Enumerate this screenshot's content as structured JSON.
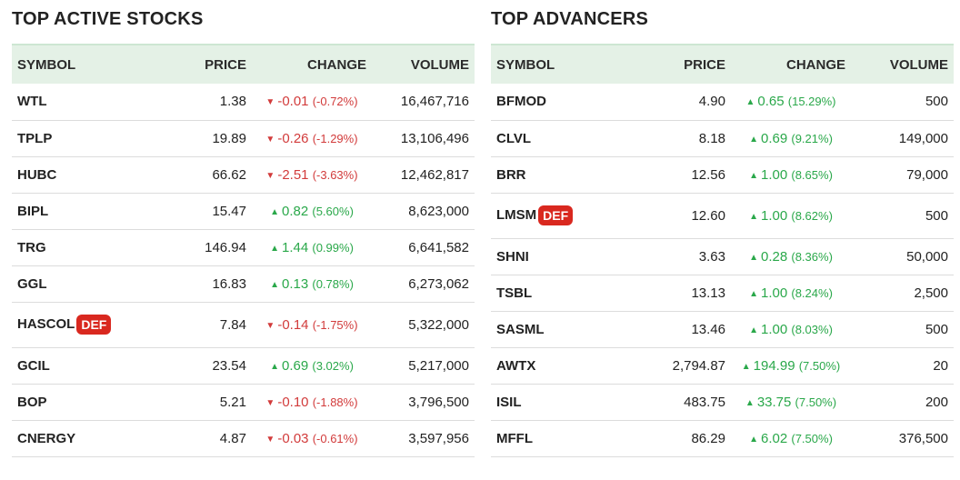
{
  "colors": {
    "up": "#2aa84a",
    "down": "#d23b3b",
    "header_bg": "#e4f1e6",
    "badge": "#d9281f"
  },
  "icons": {
    "up": "triangle-up-icon",
    "down": "triangle-down-icon"
  },
  "active": {
    "title": "TOP ACTIVE STOCKS",
    "headers": {
      "symbol": "SYMBOL",
      "price": "PRICE",
      "change": "CHANGE",
      "volume": "VOLUME"
    },
    "rows": [
      {
        "symbol": "WTL",
        "def": "",
        "price": "1.38",
        "dir": "down",
        "change": "-0.01",
        "pct": "(-0.72%)",
        "volume": "16,467,716"
      },
      {
        "symbol": "TPLP",
        "def": "",
        "price": "19.89",
        "dir": "down",
        "change": "-0.26",
        "pct": "(-1.29%)",
        "volume": "13,106,496"
      },
      {
        "symbol": "HUBC",
        "def": "",
        "price": "66.62",
        "dir": "down",
        "change": "-2.51",
        "pct": "(-3.63%)",
        "volume": "12,462,817"
      },
      {
        "symbol": "BIPL",
        "def": "",
        "price": "15.47",
        "dir": "up",
        "change": "0.82",
        "pct": "(5.60%)",
        "volume": "8,623,000"
      },
      {
        "symbol": "TRG",
        "def": "",
        "price": "146.94",
        "dir": "up",
        "change": "1.44",
        "pct": "(0.99%)",
        "volume": "6,641,582"
      },
      {
        "symbol": "GGL",
        "def": "",
        "price": "16.83",
        "dir": "up",
        "change": "0.13",
        "pct": "(0.78%)",
        "volume": "6,273,062"
      },
      {
        "symbol": "HASCOL",
        "def": "DEF",
        "price": "7.84",
        "dir": "down",
        "change": "-0.14",
        "pct": "(-1.75%)",
        "volume": "5,322,000"
      },
      {
        "symbol": "GCIL",
        "def": "",
        "price": "23.54",
        "dir": "up",
        "change": "0.69",
        "pct": "(3.02%)",
        "volume": "5,217,000"
      },
      {
        "symbol": "BOP",
        "def": "",
        "price": "5.21",
        "dir": "down",
        "change": "-0.10",
        "pct": "(-1.88%)",
        "volume": "3,796,500"
      },
      {
        "symbol": "CNERGY",
        "def": "",
        "price": "4.87",
        "dir": "down",
        "change": "-0.03",
        "pct": "(-0.61%)",
        "volume": "3,597,956"
      }
    ]
  },
  "advancers": {
    "title": "TOP ADVANCERS",
    "headers": {
      "symbol": "SYMBOL",
      "price": "PRICE",
      "change": "CHANGE",
      "volume": "VOLUME"
    },
    "rows": [
      {
        "symbol": "BFMOD",
        "def": "",
        "price": "4.90",
        "dir": "up",
        "change": "0.65",
        "pct": "(15.29%)",
        "volume": "500"
      },
      {
        "symbol": "CLVL",
        "def": "",
        "price": "8.18",
        "dir": "up",
        "change": "0.69",
        "pct": "(9.21%)",
        "volume": "149,000"
      },
      {
        "symbol": "BRR",
        "def": "",
        "price": "12.56",
        "dir": "up",
        "change": "1.00",
        "pct": "(8.65%)",
        "volume": "79,000"
      },
      {
        "symbol": "LMSM",
        "def": "DEF",
        "price": "12.60",
        "dir": "up",
        "change": "1.00",
        "pct": "(8.62%)",
        "volume": "500"
      },
      {
        "symbol": "SHNI",
        "def": "",
        "price": "3.63",
        "dir": "up",
        "change": "0.28",
        "pct": "(8.36%)",
        "volume": "50,000"
      },
      {
        "symbol": "TSBL",
        "def": "",
        "price": "13.13",
        "dir": "up",
        "change": "1.00",
        "pct": "(8.24%)",
        "volume": "2,500"
      },
      {
        "symbol": "SASML",
        "def": "",
        "price": "13.46",
        "dir": "up",
        "change": "1.00",
        "pct": "(8.03%)",
        "volume": "500"
      },
      {
        "symbol": "AWTX",
        "def": "",
        "price": "2,794.87",
        "dir": "up",
        "change": "194.99",
        "pct": "(7.50%)",
        "volume": "20"
      },
      {
        "symbol": "ISIL",
        "def": "",
        "price": "483.75",
        "dir": "up",
        "change": "33.75",
        "pct": "(7.50%)",
        "volume": "200"
      },
      {
        "symbol": "MFFL",
        "def": "",
        "price": "86.29",
        "dir": "up",
        "change": "6.02",
        "pct": "(7.50%)",
        "volume": "376,500"
      }
    ]
  }
}
